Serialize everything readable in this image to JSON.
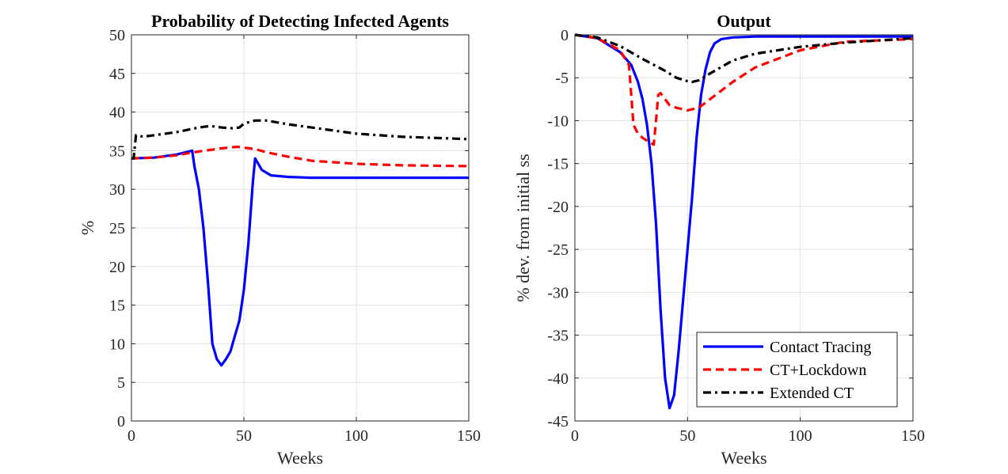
{
  "chart_data": [
    {
      "type": "line",
      "title": "Probability of Detecting Infected Agents",
      "xlabel": "Weeks",
      "ylabel": "%",
      "xlim": [
        0,
        150
      ],
      "ylim": [
        0,
        50
      ],
      "xticks": [
        0,
        50,
        100,
        150
      ],
      "yticks": [
        0,
        5,
        10,
        15,
        20,
        25,
        30,
        35,
        40,
        45,
        50
      ],
      "grid": true,
      "series": [
        {
          "name": "Contact Tracing",
          "color": "#0000ff",
          "style": "solid",
          "x": [
            0,
            10,
            20,
            27,
            28,
            30,
            32,
            34,
            36,
            38,
            40,
            42,
            44,
            46,
            48,
            50,
            52,
            54,
            55,
            56,
            58,
            62,
            70,
            80,
            100,
            150
          ],
          "y": [
            34,
            34.1,
            34.5,
            35,
            33,
            30,
            25,
            18,
            10,
            8,
            7.2,
            8,
            9,
            11,
            13,
            17,
            23,
            31,
            34,
            33.5,
            32.5,
            31.8,
            31.6,
            31.5,
            31.5,
            31.5
          ]
        },
        {
          "name": "CT+Lockdown",
          "color": "#ff0000",
          "style": "dashed",
          "x": [
            0,
            10,
            20,
            30,
            40,
            47,
            55,
            60,
            70,
            80,
            100,
            120,
            150
          ],
          "y": [
            34,
            34.1,
            34.4,
            34.9,
            35.3,
            35.5,
            35.2,
            34.8,
            34.2,
            33.7,
            33.3,
            33.1,
            33
          ]
        },
        {
          "name": "Extended CT",
          "color": "#000000",
          "style": "dashdot",
          "x": [
            0,
            1,
            2,
            3,
            5,
            10,
            20,
            30,
            35,
            40,
            45,
            48,
            50,
            55,
            60,
            70,
            80,
            100,
            120,
            150
          ],
          "y": [
            34,
            34,
            37,
            37,
            36.8,
            37,
            37.4,
            38,
            38.2,
            38,
            37.9,
            38,
            38.5,
            38.9,
            38.9,
            38.4,
            38,
            37.2,
            36.8,
            36.5
          ]
        }
      ]
    },
    {
      "type": "line",
      "title": "Output",
      "xlabel": "Weeks",
      "ylabel": "% dev. from initial ss",
      "xlim": [
        0,
        150
      ],
      "ylim": [
        -45,
        0
      ],
      "xticks": [
        0,
        50,
        100,
        150
      ],
      "yticks": [
        0,
        -5,
        -10,
        -15,
        -20,
        -25,
        -30,
        -35,
        -40,
        -45
      ],
      "grid": true,
      "legend": {
        "placement": "bottom-right",
        "entries": [
          "Contact Tracing",
          "CT+Lockdown",
          "Extended CT"
        ]
      },
      "series": [
        {
          "name": "Contact Tracing",
          "color": "#0000ff",
          "style": "solid",
          "x": [
            0,
            10,
            20,
            25,
            28,
            30,
            32,
            34,
            36,
            38,
            40,
            42,
            44,
            46,
            48,
            50,
            52,
            54,
            56,
            58,
            60,
            62,
            65,
            70,
            80,
            100,
            150
          ],
          "y": [
            0,
            -0.4,
            -2,
            -3.5,
            -5.5,
            -7.5,
            -10.5,
            -15,
            -22,
            -32,
            -40,
            -43.5,
            -42,
            -37,
            -31,
            -25,
            -19,
            -12,
            -7,
            -4,
            -2,
            -1,
            -0.5,
            -0.3,
            -0.2,
            -0.2,
            -0.2
          ]
        },
        {
          "name": "CT+Lockdown",
          "color": "#ff0000",
          "style": "dashed",
          "x": [
            0,
            10,
            20,
            24,
            25,
            26,
            28,
            30,
            33,
            35,
            36,
            37,
            38,
            40,
            42,
            45,
            50,
            55,
            60,
            70,
            80,
            100,
            120,
            150
          ],
          "y": [
            0,
            -0.4,
            -1.8,
            -3.5,
            -7,
            -10.5,
            -11.5,
            -12,
            -12.5,
            -12.8,
            -10,
            -7,
            -6.8,
            -7.5,
            -8.2,
            -8.5,
            -8.8,
            -8.5,
            -7.5,
            -5.5,
            -3.8,
            -1.8,
            -0.8,
            -0.5
          ]
        },
        {
          "name": "Extended CT",
          "color": "#000000",
          "style": "dashdot",
          "x": [
            0,
            10,
            20,
            30,
            40,
            45,
            50,
            52,
            55,
            60,
            70,
            80,
            100,
            120,
            150
          ],
          "y": [
            0,
            -0.3,
            -1.3,
            -2.8,
            -4.2,
            -5,
            -5.4,
            -5.5,
            -5.3,
            -4.5,
            -3,
            -2.2,
            -1.4,
            -0.9,
            -0.4
          ]
        }
      ]
    }
  ]
}
